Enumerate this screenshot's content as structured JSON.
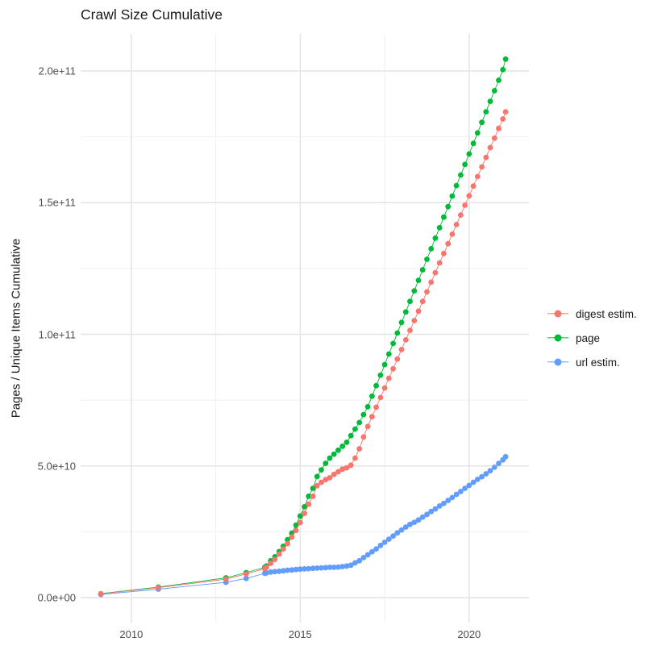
{
  "chart_data": {
    "type": "line",
    "markers": true,
    "title": "Crawl Size Cumulative",
    "xlabel": "",
    "ylabel": "Pages / Unique Items Cumulative",
    "grid": true,
    "legend_position": "right",
    "x_domain": [
      2008.5,
      2021.77
    ],
    "y_domain": [
      -9500000000.0,
      214100000000.0
    ],
    "x_major_ticks": [
      2010,
      2015,
      2020
    ],
    "x_tick_labels": [
      "2010",
      "2015",
      "2020"
    ],
    "x_minor_ticks": [
      2012.5,
      2017.5
    ],
    "y_major_ticks": [
      0,
      50000000000.0,
      100000000000.0,
      150000000000.0,
      200000000000.0
    ],
    "y_tick_labels": [
      "0.0e+00",
      "5.0e+10",
      "1.0e+11",
      "1.5e+11",
      "2.0e+11"
    ],
    "y_minor_ticks": [
      25000000000.0,
      75000000000.0,
      125000000000.0,
      175000000000.0
    ],
    "colors": {
      "digest": "#F8766D",
      "page": "#00BA38",
      "url": "#619CFF"
    },
    "grid_major_color": "#E4E4E4",
    "grid_minor_color": "#F0F0F0",
    "legend": [
      {
        "label": "digest estim.",
        "color": "#F8766D"
      },
      {
        "label": "page",
        "color": "#00BA38"
      },
      {
        "label": "url estim.",
        "color": "#619CFF"
      }
    ],
    "series": [
      {
        "name": "page",
        "color": "#00BA38",
        "points": [
          [
            2009.1,
            1500000000.0
          ],
          [
            2010.8,
            4000000000.0
          ],
          [
            2012.8,
            7500000000.0
          ],
          [
            2013.4,
            9500000000.0
          ],
          [
            2013.95,
            11500000000.0
          ],
          [
            2014.0,
            12000000000.0
          ],
          [
            2014.125,
            14000000000.0
          ],
          [
            2014.25,
            15500000000.0
          ],
          [
            2014.375,
            17500000000.0
          ],
          [
            2014.5,
            19500000000.0
          ],
          [
            2014.625,
            22000000000.0
          ],
          [
            2014.75,
            24500000000.0
          ],
          [
            2014.875,
            27500000000.0
          ],
          [
            2015.0,
            31000000000.0
          ],
          [
            2015.125,
            34500000000.0
          ],
          [
            2015.25,
            38500000000.0
          ],
          [
            2015.375,
            41500000000.0
          ],
          [
            2015.5,
            46000000000.0
          ],
          [
            2015.625,
            48500000000.0
          ],
          [
            2015.75,
            51000000000.0
          ],
          [
            2015.875,
            53000000000.0
          ],
          [
            2016.0,
            54500000000.0
          ],
          [
            2016.125,
            56000000000.0
          ],
          [
            2016.25,
            57500000000.0
          ],
          [
            2016.375,
            59000000000.0
          ],
          [
            2016.5,
            61500000000.0
          ],
          [
            2016.625,
            64000000000.0
          ],
          [
            2016.75,
            66500000000.0
          ],
          [
            2016.875,
            69500000000.0
          ],
          [
            2017.0,
            72500000000.0
          ],
          [
            2017.125,
            76500000000.0
          ],
          [
            2017.25,
            80500000000.0
          ],
          [
            2017.375,
            84500000000.0
          ],
          [
            2017.5,
            88500000000.0
          ],
          [
            2017.625,
            92500000000.0
          ],
          [
            2017.75,
            96500000000.0
          ],
          [
            2017.875,
            100500000000.0
          ],
          [
            2018.0,
            104500000000.0
          ],
          [
            2018.125,
            108500000000.0
          ],
          [
            2018.25,
            112500000000.0
          ],
          [
            2018.375,
            116500000000.0
          ],
          [
            2018.5,
            120500000000.0
          ],
          [
            2018.625,
            124500000000.0
          ],
          [
            2018.75,
            128500000000.0
          ],
          [
            2018.875,
            132500000000.0
          ],
          [
            2019.0,
            136500000000.0
          ],
          [
            2019.125,
            140500000000.0
          ],
          [
            2019.25,
            144500000000.0
          ],
          [
            2019.375,
            148500000000.0
          ],
          [
            2019.5,
            152500000000.0
          ],
          [
            2019.625,
            156500000000.0
          ],
          [
            2019.75,
            160500000000.0
          ],
          [
            2019.875,
            164500000000.0
          ],
          [
            2020.0,
            168500000000.0
          ],
          [
            2020.125,
            172500000000.0
          ],
          [
            2020.25,
            176500000000.0
          ],
          [
            2020.375,
            180500000000.0
          ],
          [
            2020.5,
            184500000000.0
          ],
          [
            2020.625,
            188500000000.0
          ],
          [
            2020.75,
            192500000000.0
          ],
          [
            2020.875,
            196500000000.0
          ],
          [
            2021.0,
            200500000000.0
          ],
          [
            2021.08,
            204500000000.0
          ]
        ]
      },
      {
        "name": "url estim.",
        "color": "#619CFF",
        "points": [
          [
            2009.1,
            1200000000.0
          ],
          [
            2010.8,
            3200000000.0
          ],
          [
            2012.8,
            5800000000.0
          ],
          [
            2013.4,
            7300000000.0
          ],
          [
            2013.95,
            9200000000.0
          ],
          [
            2014.0,
            9400000000.0
          ],
          [
            2014.125,
            9700000000.0
          ],
          [
            2014.25,
            9900000000.0
          ],
          [
            2014.375,
            10000000000.0
          ],
          [
            2014.5,
            10200000000.0
          ],
          [
            2014.625,
            10400000000.0
          ],
          [
            2014.75,
            10500000000.0
          ],
          [
            2014.875,
            10700000000.0
          ],
          [
            2015.0,
            10800000000.0
          ],
          [
            2015.125,
            10900000000.0
          ],
          [
            2015.25,
            11000000000.0
          ],
          [
            2015.375,
            11100000000.0
          ],
          [
            2015.5,
            11200000000.0
          ],
          [
            2015.625,
            11300000000.0
          ],
          [
            2015.75,
            11400000000.0
          ],
          [
            2015.875,
            11500000000.0
          ],
          [
            2016.0,
            11500000000.0
          ],
          [
            2016.125,
            11600000000.0
          ],
          [
            2016.25,
            11800000000.0
          ],
          [
            2016.375,
            12000000000.0
          ],
          [
            2016.5,
            12300000000.0
          ],
          [
            2016.625,
            13200000000.0
          ],
          [
            2016.75,
            14000000000.0
          ],
          [
            2016.875,
            15200000000.0
          ],
          [
            2017.0,
            16300000000.0
          ],
          [
            2017.125,
            17400000000.0
          ],
          [
            2017.25,
            18500000000.0
          ],
          [
            2017.375,
            19800000000.0
          ],
          [
            2017.5,
            21000000000.0
          ],
          [
            2017.625,
            22200000000.0
          ],
          [
            2017.75,
            23400000000.0
          ],
          [
            2017.875,
            24600000000.0
          ],
          [
            2018.0,
            25700000000.0
          ],
          [
            2018.125,
            26800000000.0
          ],
          [
            2018.25,
            27800000000.0
          ],
          [
            2018.375,
            28600000000.0
          ],
          [
            2018.5,
            29500000000.0
          ],
          [
            2018.625,
            30600000000.0
          ],
          [
            2018.75,
            31600000000.0
          ],
          [
            2018.875,
            32700000000.0
          ],
          [
            2019.0,
            33700000000.0
          ],
          [
            2019.125,
            34800000000.0
          ],
          [
            2019.25,
            35800000000.0
          ],
          [
            2019.375,
            36900000000.0
          ],
          [
            2019.5,
            38000000000.0
          ],
          [
            2019.625,
            39200000000.0
          ],
          [
            2019.75,
            40300000000.0
          ],
          [
            2019.875,
            41500000000.0
          ],
          [
            2020.0,
            42600000000.0
          ],
          [
            2020.125,
            43800000000.0
          ],
          [
            2020.25,
            44900000000.0
          ],
          [
            2020.375,
            45900000000.0
          ],
          [
            2020.5,
            47000000000.0
          ],
          [
            2020.625,
            48200000000.0
          ],
          [
            2020.75,
            49500000000.0
          ],
          [
            2020.875,
            51000000000.0
          ],
          [
            2021.0,
            52300000000.0
          ],
          [
            2021.08,
            53500000000.0
          ]
        ]
      },
      {
        "name": "digest estim.",
        "color": "#F8766D",
        "points": [
          [
            2009.1,
            1400000000.0
          ],
          [
            2010.8,
            3800000000.0
          ],
          [
            2012.8,
            7000000000.0
          ],
          [
            2013.4,
            9000000000.0
          ],
          [
            2013.95,
            11000000000.0
          ],
          [
            2014.0,
            11500000000.0
          ],
          [
            2014.125,
            13000000000.0
          ],
          [
            2014.25,
            14500000000.0
          ],
          [
            2014.375,
            16500000000.0
          ],
          [
            2014.5,
            18500000000.0
          ],
          [
            2014.625,
            20500000000.0
          ],
          [
            2014.75,
            23000000000.0
          ],
          [
            2014.875,
            25500000000.0
          ],
          [
            2015.0,
            28500000000.0
          ],
          [
            2015.125,
            32000000000.0
          ],
          [
            2015.25,
            35500000000.0
          ],
          [
            2015.375,
            38500000000.0
          ],
          [
            2015.5,
            42500000000.0
          ],
          [
            2015.625,
            43800000000.0
          ],
          [
            2015.75,
            44800000000.0
          ],
          [
            2015.875,
            45500000000.0
          ],
          [
            2016.0,
            46800000000.0
          ],
          [
            2016.125,
            47800000000.0
          ],
          [
            2016.25,
            48800000000.0
          ],
          [
            2016.375,
            49300000000.0
          ],
          [
            2016.5,
            50300000000.0
          ],
          [
            2016.625,
            53000000000.0
          ],
          [
            2016.75,
            56500000000.0
          ],
          [
            2016.875,
            61000000000.0
          ],
          [
            2017.0,
            65000000000.0
          ],
          [
            2017.125,
            68700000000.0
          ],
          [
            2017.25,
            72300000000.0
          ],
          [
            2017.375,
            76000000000.0
          ],
          [
            2017.5,
            79600000000.0
          ],
          [
            2017.625,
            83300000000.0
          ],
          [
            2017.75,
            86900000000.0
          ],
          [
            2017.875,
            90600000000.0
          ],
          [
            2018.0,
            94200000000.0
          ],
          [
            2018.125,
            97900000000.0
          ],
          [
            2018.25,
            101500000000.0
          ],
          [
            2018.375,
            105200000000.0
          ],
          [
            2018.5,
            108800000000.0
          ],
          [
            2018.625,
            112500000000.0
          ],
          [
            2018.75,
            116100000000.0
          ],
          [
            2018.875,
            119800000000.0
          ],
          [
            2019.0,
            123400000000.0
          ],
          [
            2019.125,
            127100000000.0
          ],
          [
            2019.25,
            130700000000.0
          ],
          [
            2019.375,
            134400000000.0
          ],
          [
            2019.5,
            138000000000.0
          ],
          [
            2019.625,
            141700000000.0
          ],
          [
            2019.75,
            145300000000.0
          ],
          [
            2019.875,
            149000000000.0
          ],
          [
            2020.0,
            152600000000.0
          ],
          [
            2020.125,
            156300000000.0
          ],
          [
            2020.25,
            159900000000.0
          ],
          [
            2020.375,
            163600000000.0
          ],
          [
            2020.5,
            167200000000.0
          ],
          [
            2020.625,
            170900000000.0
          ],
          [
            2020.75,
            174500000000.0
          ],
          [
            2020.875,
            178200000000.0
          ],
          [
            2021.0,
            181800000000.0
          ],
          [
            2021.08,
            184500000000.0
          ]
        ]
      }
    ]
  }
}
